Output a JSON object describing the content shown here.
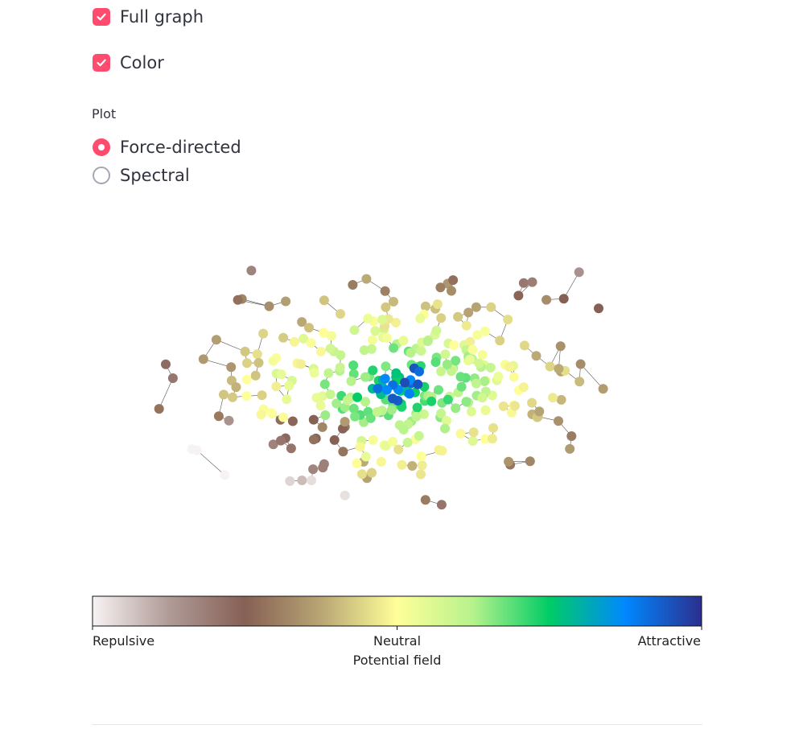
{
  "controls": {
    "full_graph": {
      "label": "Full graph",
      "checked": true
    },
    "color": {
      "label": "Color",
      "checked": true
    },
    "plot": {
      "label": "Plot",
      "options": [
        {
          "label": "Force-directed",
          "selected": true
        },
        {
          "label": "Spectral",
          "selected": false
        }
      ]
    }
  },
  "colors": {
    "accent": "#ff4b6e",
    "edge": "#555555",
    "gradient": [
      "#f7f3f3",
      "#b09b97",
      "#866055",
      "#b8a574",
      "#ffff99",
      "#b6f28c",
      "#00cc66",
      "#0088ff",
      "#2c2e8e"
    ]
  },
  "colorbar": {
    "title": "Potential field",
    "tick_labels": [
      "Repulsive",
      "Neutral",
      "Attractive"
    ]
  },
  "icons": {
    "checkbox": "checkmark-icon",
    "radio": "radio-dot-icon"
  }
}
